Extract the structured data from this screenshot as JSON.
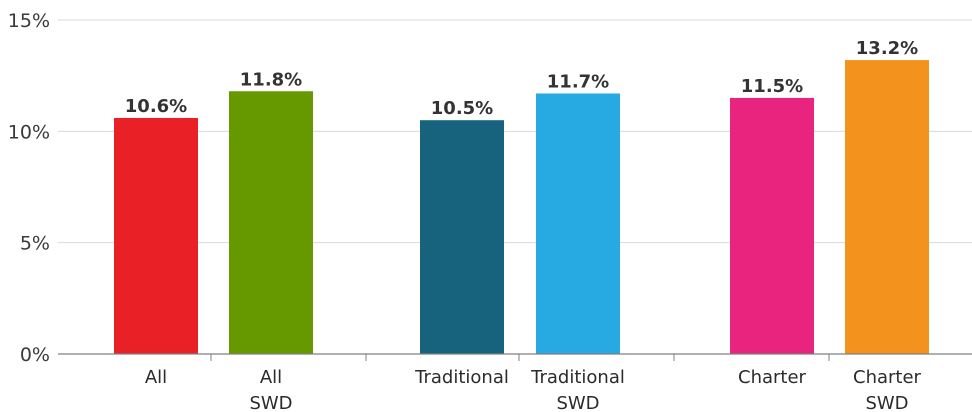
{
  "chart_data": {
    "type": "bar",
    "title": "",
    "xlabel": "",
    "ylabel": "",
    "ylim": [
      0,
      15
    ],
    "yticks": [
      0,
      5,
      10,
      15
    ],
    "ytick_labels": [
      "0%",
      "5%",
      "10%",
      "15%"
    ],
    "grid": true,
    "legend": "none",
    "groups": [
      {
        "bars": [
          {
            "label": [
              "All"
            ],
            "value": 10.6,
            "value_label": "10.6%",
            "color": "#e92127"
          },
          {
            "label": [
              "All",
              "SWD"
            ],
            "value": 11.8,
            "value_label": "11.8%",
            "color": "#669900"
          }
        ]
      },
      {
        "bars": [
          {
            "label": [
              "Traditional"
            ],
            "value": 10.5,
            "value_label": "10.5%",
            "color": "#17637e"
          },
          {
            "label": [
              "Traditional",
              "SWD"
            ],
            "value": 11.7,
            "value_label": "11.7%",
            "color": "#27a9e1"
          }
        ]
      },
      {
        "bars": [
          {
            "label": [
              "Charter"
            ],
            "value": 11.5,
            "value_label": "11.5%",
            "color": "#e8247f"
          },
          {
            "label": [
              "Charter",
              "SWD"
            ],
            "value": 13.2,
            "value_label": "13.2%",
            "color": "#f4921e"
          }
        ]
      }
    ]
  }
}
